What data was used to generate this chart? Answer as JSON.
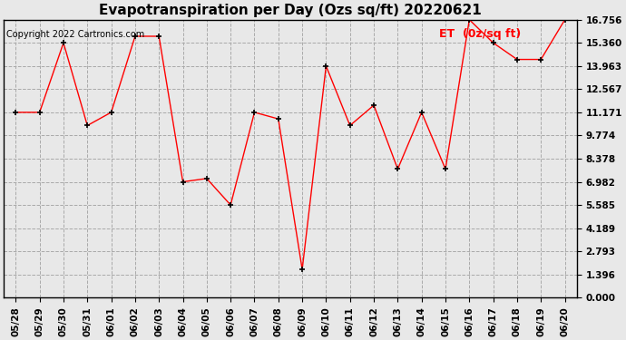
{
  "title": "Evapotranspiration per Day (Ozs sq/ft) 20220621",
  "copyright": "Copyright 2022 Cartronics.com",
  "legend_label": "ET  (0z/sq ft)",
  "x_labels": [
    "05/28",
    "05/29",
    "05/30",
    "05/31",
    "06/01",
    "06/02",
    "06/03",
    "06/04",
    "06/05",
    "06/06",
    "06/07",
    "06/08",
    "06/09",
    "06/10",
    "06/11",
    "06/12",
    "06/13",
    "06/14",
    "06/15",
    "06/16",
    "06/17",
    "06/18",
    "06/19",
    "06/20"
  ],
  "y_values": [
    11.171,
    11.171,
    15.36,
    10.375,
    11.171,
    15.757,
    15.757,
    6.982,
    7.18,
    5.585,
    11.171,
    10.774,
    1.7,
    13.963,
    10.375,
    11.6,
    7.75,
    11.171,
    7.75,
    16.756,
    15.36,
    14.36,
    14.36,
    16.756
  ],
  "y_ticks": [
    0.0,
    1.396,
    2.793,
    4.189,
    5.585,
    6.982,
    8.378,
    9.774,
    11.171,
    12.567,
    13.963,
    15.36,
    16.756
  ],
  "y_min": 0.0,
  "y_max": 16.756,
  "line_color": "red",
  "marker_color": "black",
  "marker_style": "+",
  "marker_size": 5,
  "background_color": "#e8e8e8",
  "grid_color": "#aaaaaa",
  "title_fontsize": 11,
  "tick_fontsize": 7.5,
  "copyright_fontsize": 7,
  "legend_color": "red",
  "legend_fontsize": 9
}
